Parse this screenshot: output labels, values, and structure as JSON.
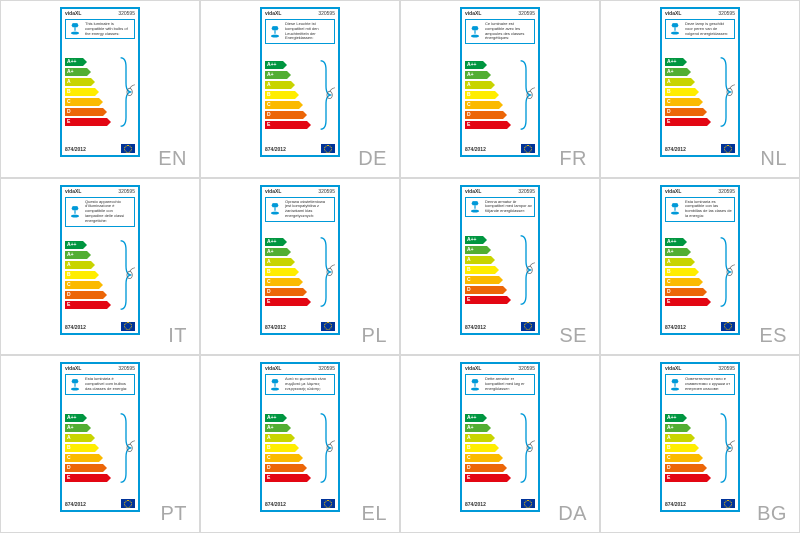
{
  "brand": "vidaXL",
  "productCode": "320595",
  "regulation": "874/2012",
  "energyClasses": [
    {
      "grade": "A++",
      "cls": "bar-a2"
    },
    {
      "grade": "A+",
      "cls": "bar-a1"
    },
    {
      "grade": "A",
      "cls": "bar-a"
    },
    {
      "grade": "B",
      "cls": "bar-b"
    },
    {
      "grade": "C",
      "cls": "bar-c"
    },
    {
      "grade": "D",
      "cls": "bar-d"
    },
    {
      "grade": "E",
      "cls": "bar-e"
    }
  ],
  "colors": {
    "border": "#0099d8",
    "A++": "#009640",
    "A+": "#52ae32",
    "A": "#c8d400",
    "B": "#ffed00",
    "C": "#fbba00",
    "D": "#ec6608",
    "E": "#e30613",
    "eu_blue": "#003399",
    "eu_gold": "#ffcc00",
    "lang_text": "#a8a8a8",
    "cell_border": "#d8d8d8"
  },
  "labels": [
    {
      "lang": "EN",
      "text": "This luminaire is compatible with bulbs of the energy classes:"
    },
    {
      "lang": "DE",
      "text": "Diese Leuchte ist kompatibel mit den Leuchtmitteln der Energieklassen:"
    },
    {
      "lang": "FR",
      "text": "Ce luminaire est compatible avec les ampoules des classes énergétiques:"
    },
    {
      "lang": "NL",
      "text": "Deze lamp is geschikt voor peren van de volgend energieklassen:"
    },
    {
      "lang": "IT",
      "text": "Questo apparecchio d'illuminazione è compatibile con lampadine delle classi energetiche:"
    },
    {
      "lang": "PL",
      "text": "Oprawa oświetleniowa jest kompatybilna z żarówkami klas energetycznych:"
    },
    {
      "lang": "SE",
      "text": "Denna armatur är kompatibel med lampor av följande energiklasser:"
    },
    {
      "lang": "ES",
      "text": "Esta luminaria es compatible con las bombillas de las clases de la energía:"
    },
    {
      "lang": "PT",
      "text": "Esta luminária é compatível com bulbos das classes de energia:"
    },
    {
      "lang": "EL",
      "text": "Αυτό το φωτιστικό είναι συμβατό με λάμπες ενεργειακής κλάσης:"
    },
    {
      "lang": "DA",
      "text": "Dette armatur er kompatibel med løg er energiklasser:"
    },
    {
      "lang": "BG",
      "text": "Осветителното тяло е съвместимо с крушки от енергиен класове:"
    }
  ]
}
